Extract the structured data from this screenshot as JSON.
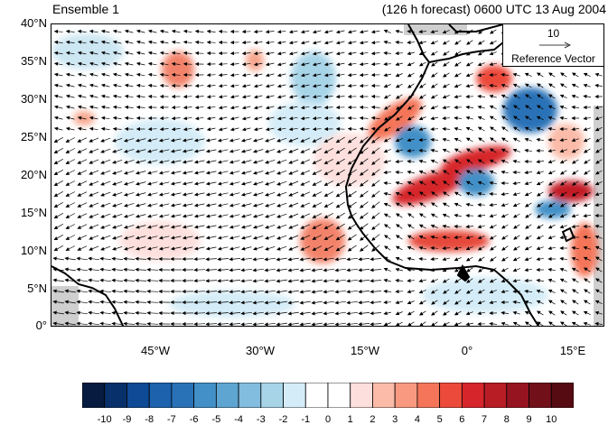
{
  "title_left": "Ensemble 1",
  "title_right": "(126 h forecast) 0600 UTC 13 Aug 2004",
  "lat_labels": [
    "40°N",
    "35°N",
    "30°N",
    "25°N",
    "20°N",
    "15°N",
    "10°N",
    "5°N",
    "0°"
  ],
  "lon_labels": [
    "45°W",
    "30°W",
    "15°W",
    "0°",
    "15°E"
  ],
  "reference_vector": {
    "magnitude": "10",
    "label": "Reference Vector"
  },
  "colorbar": {
    "labels": [
      "-10",
      "-9",
      "-8",
      "-7",
      "-6",
      "-5",
      "-4",
      "-3",
      "-2",
      "-1",
      "0",
      "1",
      "2",
      "3",
      "4",
      "5",
      "6",
      "7",
      "8",
      "9",
      "10"
    ],
    "colors": [
      "#061b3f",
      "#08306b",
      "#0e4a95",
      "#1c62ad",
      "#2a72b7",
      "#4290c7",
      "#5fa5d2",
      "#82bcdf",
      "#a8d4e8",
      "#d4ecf7",
      "#ffffff",
      "#ffffff",
      "#fde0dd",
      "#fbbba8",
      "#f99a80",
      "#f47559",
      "#ec4a3a",
      "#d6262b",
      "#b81d25",
      "#961420",
      "#72101a",
      "#560a12"
    ]
  }
}
